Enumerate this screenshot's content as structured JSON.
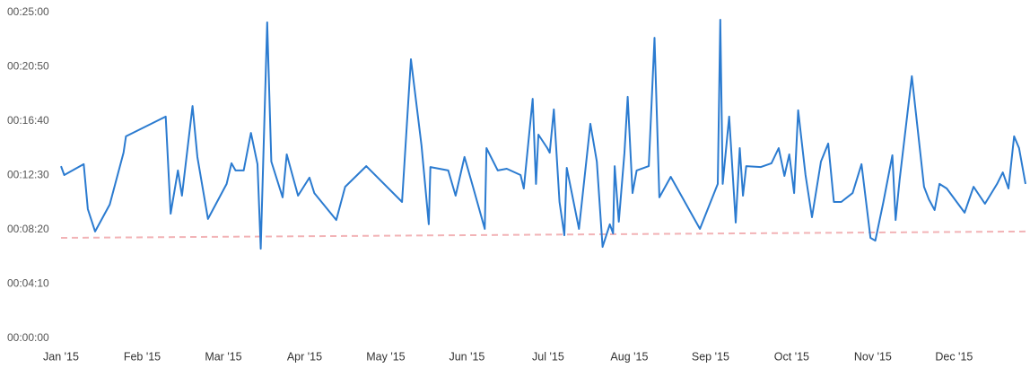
{
  "chart_data": {
    "type": "line",
    "xlim": [
      0,
      11.88
    ],
    "xticks": [
      {
        "value": 0,
        "label": "Jan '15"
      },
      {
        "value": 1,
        "label": "Feb '15"
      },
      {
        "value": 2,
        "label": "Mar '15"
      },
      {
        "value": 3,
        "label": "Apr '15"
      },
      {
        "value": 4,
        "label": "May '15"
      },
      {
        "value": 5,
        "label": "Jun '15"
      },
      {
        "value": 6,
        "label": "Jul '15"
      },
      {
        "value": 7,
        "label": "Aug '15"
      },
      {
        "value": 8,
        "label": "Sep '15"
      },
      {
        "value": 9,
        "label": "Oct '15"
      },
      {
        "value": 10,
        "label": "Nov '15"
      },
      {
        "value": 11,
        "label": "Dec '15"
      }
    ],
    "ylim": [
      0,
      1500
    ],
    "yticks": [
      {
        "value": 0,
        "label": "00:00:00"
      },
      {
        "value": 250,
        "label": "00:04:10"
      },
      {
        "value": 500,
        "label": "00:08:20"
      },
      {
        "value": 750,
        "label": "00:12:30"
      },
      {
        "value": 1000,
        "label": "00:16:40"
      },
      {
        "value": 1250,
        "label": "00:20:50"
      },
      {
        "value": 1500,
        "label": "00:25:00"
      }
    ],
    "x": [
      0,
      0.04,
      0.28,
      0.33,
      0.42,
      0.6,
      0.77,
      0.8,
      1.29,
      1.35,
      1.44,
      1.49,
      1.62,
      1.68,
      1.81,
      2.04,
      2.1,
      2.15,
      2.25,
      2.34,
      2.42,
      2.46,
      2.54,
      2.59,
      2.73,
      2.78,
      2.92,
      3.06,
      3.12,
      3.39,
      3.5,
      3.76,
      4.2,
      4.31,
      4.44,
      4.53,
      4.55,
      4.77,
      4.86,
      4.97,
      5.08,
      5.22,
      5.24,
      5.38,
      5.49,
      5.66,
      5.7,
      5.81,
      5.85,
      5.88,
      5.99,
      6.02,
      6.07,
      6.14,
      6.2,
      6.23,
      6.38,
      6.52,
      6.6,
      6.67,
      6.76,
      6.8,
      6.82,
      6.87,
      6.94,
      6.98,
      7.04,
      7.09,
      7.24,
      7.31,
      7.37,
      7.51,
      7.87,
      8.09,
      8.12,
      8.15,
      8.23,
      8.31,
      8.36,
      8.4,
      8.44,
      8.62,
      8.75,
      8.84,
      8.91,
      8.97,
      9.03,
      9.08,
      9.17,
      9.25,
      9.36,
      9.45,
      9.52,
      9.61,
      9.75,
      9.86,
      9.97,
      10.03,
      10.13,
      10.24,
      10.28,
      10.33,
      10.48,
      10.63,
      10.69,
      10.76,
      10.82,
      10.91,
      11.13,
      11.24,
      11.38,
      11.53,
      11.6,
      11.67,
      11.74,
      11.8,
      11.88
    ],
    "values": [
      793,
      752,
      802,
      595,
      492,
      616,
      855,
      930,
      1021,
      574,
      773,
      657,
      1070,
      835,
      550,
      711,
      806,
      773,
      773,
      946,
      802,
      413,
      1455,
      814,
      649,
      847,
      657,
      740,
      669,
      545,
      698,
      793,
      628,
      1285,
      888,
      525,
      789,
      773,
      657,
      835,
      690,
      504,
      876,
      773,
      781,
      752,
      690,
      1103,
      711,
      938,
      876,
      855,
      1054,
      628,
      475,
      785,
      504,
      988,
      814,
      421,
      525,
      483,
      793,
      537,
      855,
      1112,
      669,
      773,
      793,
      1384,
      649,
      744,
      504,
      711,
      1467,
      711,
      1021,
      533,
      876,
      657,
      793,
      789,
      806,
      876,
      748,
      847,
      669,
      1050,
      752,
      558,
      814,
      897,
      628,
      628,
      669,
      802,
      463,
      450,
      628,
      843,
      545,
      731,
      1207,
      698,
      640,
      591,
      711,
      690,
      579,
      698,
      620,
      711,
      764,
      690,
      930,
      876,
      711
    ],
    "color": "#2b7bd0",
    "reference_line": {
      "x": [
        0,
        11.88
      ],
      "values": [
        463,
        492
      ],
      "color": "#f2b3b6"
    }
  }
}
